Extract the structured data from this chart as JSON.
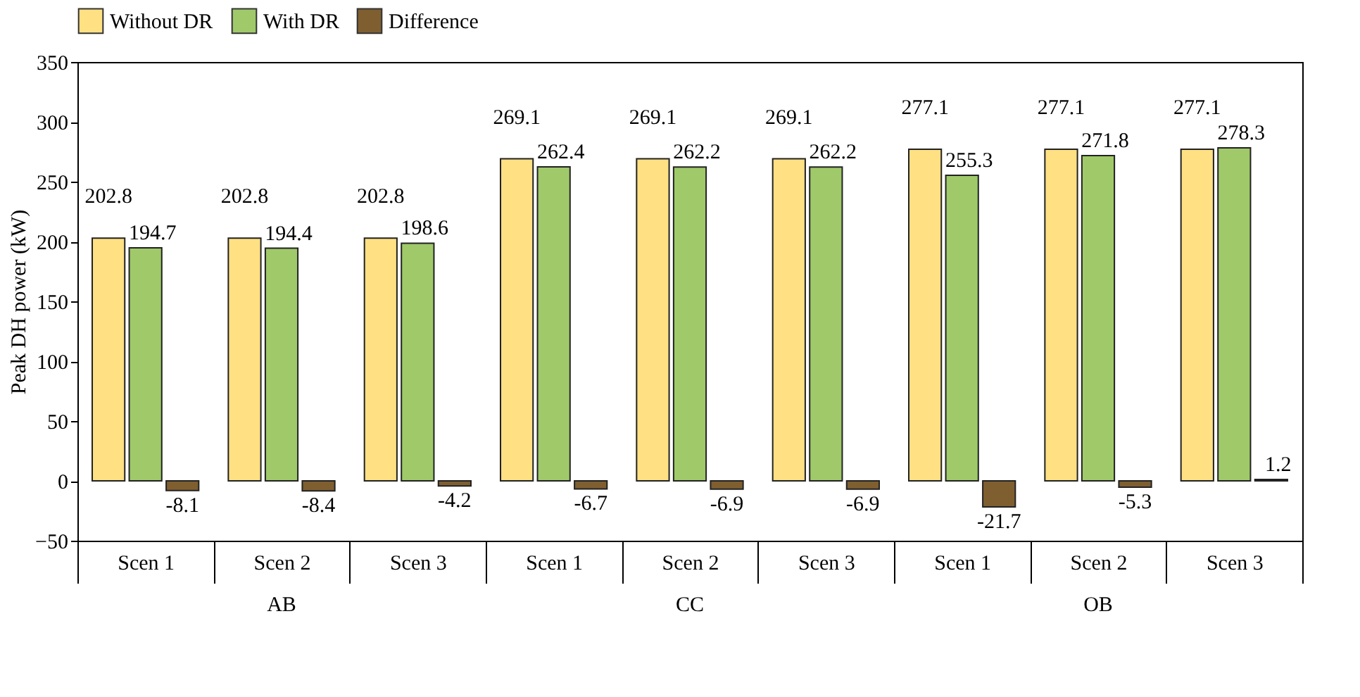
{
  "chart_data": {
    "type": "bar",
    "ylabel": "Peak DH power (kW)",
    "categories": [
      "Scen 1",
      "Scen 2",
      "Scen 3",
      "Scen 1",
      "Scen 2",
      "Scen 3",
      "Scen 1",
      "Scen 2",
      "Scen 3"
    ],
    "series": [
      {
        "name": "Without DR",
        "color": "#ffe082",
        "values": [
          202.8,
          202.8,
          202.8,
          269.1,
          269.1,
          269.1,
          277.1,
          277.1,
          277.1
        ]
      },
      {
        "name": "With DR",
        "color": "#a0c96a",
        "values": [
          194.7,
          194.4,
          198.6,
          262.4,
          262.2,
          262.2,
          255.3,
          271.8,
          278.3
        ]
      },
      {
        "name": "Difference",
        "color": "#7f5f30",
        "values": [
          -8.1,
          -8.4,
          -4.2,
          -6.7,
          -6.9,
          -6.9,
          -21.7,
          -5.3,
          1.2
        ]
      }
    ],
    "annotations": [
      "AB",
      "CC",
      "OB"
    ],
    "ylim": [
      -50,
      350
    ],
    "yticks": [
      -50,
      0,
      50,
      100,
      150,
      200,
      250,
      300,
      350
    ],
    "data_labels": true,
    "legend": "top",
    "grid": false
  }
}
